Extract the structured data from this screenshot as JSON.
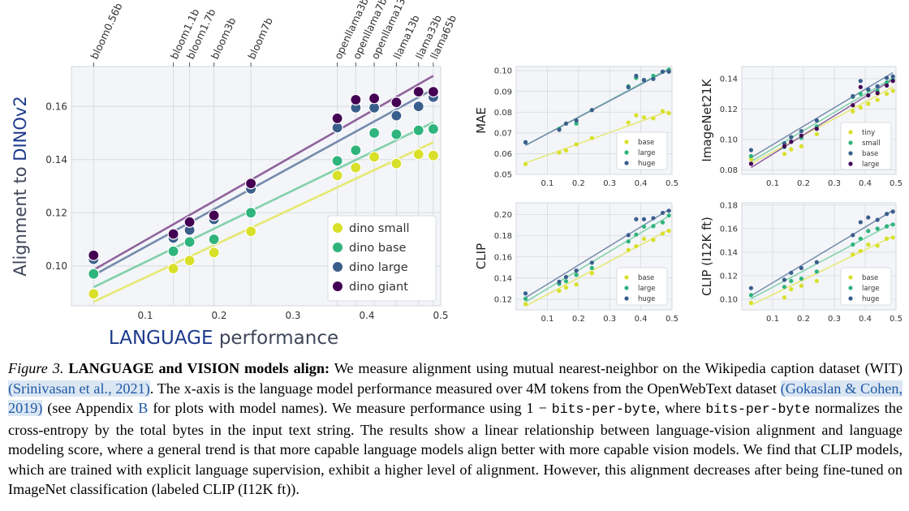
{
  "colors": {
    "yellow": "#d9e029",
    "teal": "#2fb47c",
    "blue": "#3a5e8c",
    "purple": "#440154",
    "fit_yellow": "#e6e86a",
    "fit_teal": "#7ccfa6",
    "fit_blue": "#6f86a8",
    "fit_purple": "#8a5b98",
    "panel_bg": "#f3f5f8",
    "grid": "#d7dbe0",
    "caption_link": "#1f5aa6"
  },
  "chart_data": [
    {
      "id": "main",
      "type": "scatter",
      "title": "",
      "ylabel_prefix": "Alignment to",
      "ylabel_emph": "DINOv2",
      "xlabel_emph": "LANGUAGE",
      "xlabel_rest": "performance",
      "xlim": [
        0.0,
        0.5
      ],
      "ylim": [
        0.085,
        0.175
      ],
      "xticks": [
        0.1,
        0.2,
        0.3,
        0.4,
        0.5
      ],
      "xtick_labels": [
        "0.1",
        "0.2",
        "0.3",
        "0.4",
        "0.5"
      ],
      "yticks": [
        0.1,
        0.12,
        0.14,
        0.16
      ],
      "ytick_labels": [
        "0.10",
        "0.12",
        "0.14",
        "0.16"
      ],
      "top_axis_ticks": [
        0.03,
        0.138,
        0.16,
        0.193,
        0.243,
        0.36,
        0.385,
        0.41,
        0.44,
        0.47,
        0.49
      ],
      "top_axis_labels": [
        "bloom0.56b",
        "bloom1.1b",
        "bloom1.7b",
        "bloom3b",
        "bloom7b",
        "openllama3b",
        "openllama7b",
        "openllama13b",
        "llama13b",
        "llama33b",
        "llama65b"
      ],
      "x": [
        0.03,
        0.138,
        0.16,
        0.193,
        0.243,
        0.36,
        0.385,
        0.41,
        0.44,
        0.47,
        0.49
      ],
      "series": [
        {
          "name": "dino small",
          "color": "yellow",
          "values": [
            0.0895,
            0.099,
            0.102,
            0.105,
            0.113,
            0.134,
            0.137,
            0.141,
            0.1385,
            0.142,
            0.1415
          ],
          "fit": [
            0.0865,
            0.1465
          ]
        },
        {
          "name": "dino base",
          "color": "teal",
          "values": [
            0.097,
            0.1055,
            0.109,
            0.11,
            0.12,
            0.1395,
            0.1435,
            0.15,
            0.1495,
            0.151,
            0.1515
          ],
          "fit": [
            0.092,
            0.154
          ]
        },
        {
          "name": "dino large",
          "color": "blue",
          "values": [
            0.1025,
            0.1105,
            0.1135,
            0.1175,
            0.129,
            0.152,
            0.1595,
            0.1595,
            0.1565,
            0.16,
            0.1635
          ],
          "fit": [
            0.0965,
            0.1665
          ]
        },
        {
          "name": "dino giant",
          "color": "purple",
          "values": [
            0.104,
            0.112,
            0.1165,
            0.119,
            0.131,
            0.1555,
            0.1625,
            0.163,
            0.1615,
            0.1655,
            0.1655
          ],
          "fit": [
            0.0985,
            0.1715
          ]
        }
      ],
      "legend_position": "lower-right"
    },
    {
      "id": "mae",
      "type": "scatter",
      "ylabel": "MAE",
      "xlim": [
        0.0,
        0.5
      ],
      "ylim": [
        0.05,
        0.102
      ],
      "xticks": [
        0.1,
        0.2,
        0.3,
        0.4,
        0.5
      ],
      "xtick_labels": [
        "0.1",
        "0.2",
        "0.3",
        "0.4",
        "0.5"
      ],
      "yticks": [
        0.05,
        0.06,
        0.07,
        0.08,
        0.09,
        0.1
      ],
      "ytick_labels": [
        "0.05",
        "0.06",
        "0.07",
        "0.08",
        "0.09",
        "0.10"
      ],
      "x": [
        0.03,
        0.138,
        0.16,
        0.193,
        0.243,
        0.36,
        0.385,
        0.41,
        0.44,
        0.47,
        0.49
      ],
      "series": [
        {
          "name": "base",
          "color": "yellow",
          "values": [
            0.055,
            0.0605,
            0.0615,
            0.0645,
            0.0675,
            0.075,
            0.0785,
            0.0775,
            0.077,
            0.0805,
            0.0795
          ],
          "fit": [
            0.0555,
            0.0805
          ]
        },
        {
          "name": "large",
          "color": "teal",
          "values": [
            0.0655,
            0.072,
            0.0745,
            0.0745,
            0.081,
            0.0925,
            0.0965,
            0.0955,
            0.0975,
            0.0995,
            0.1005
          ],
          "fit": [
            0.064,
            0.101
          ]
        },
        {
          "name": "huge",
          "color": "blue",
          "values": [
            0.0655,
            0.0715,
            0.0745,
            0.076,
            0.081,
            0.092,
            0.0975,
            0.0955,
            0.096,
            0.0995,
            0.0995
          ],
          "fit": [
            0.064,
            0.1005
          ]
        }
      ],
      "legend_position": "lower-right"
    },
    {
      "id": "in21k",
      "type": "scatter",
      "ylabel": "ImageNet21K",
      "xlim": [
        0.0,
        0.5
      ],
      "ylim": [
        0.077,
        0.148
      ],
      "xticks": [
        0.1,
        0.2,
        0.3,
        0.4,
        0.5
      ],
      "xtick_labels": [
        "0.1",
        "0.2",
        "0.3",
        "0.4",
        "0.5"
      ],
      "yticks": [
        0.08,
        0.1,
        0.12,
        0.14
      ],
      "ytick_labels": [
        "0.08",
        "0.10",
        "0.12",
        "0.14"
      ],
      "x": [
        0.03,
        0.138,
        0.16,
        0.193,
        0.243,
        0.36,
        0.385,
        0.41,
        0.44,
        0.47,
        0.49
      ],
      "series": [
        {
          "name": "tiny",
          "color": "yellow",
          "values": [
            0.087,
            0.0905,
            0.0935,
            0.0955,
            0.1035,
            0.1185,
            0.121,
            0.1235,
            0.126,
            0.13,
            0.132
          ],
          "fit": [
            0.084,
            0.1345
          ]
        },
        {
          "name": "small",
          "color": "teal",
          "values": [
            0.089,
            0.095,
            0.0985,
            0.101,
            0.1085,
            0.128,
            0.13,
            0.1325,
            0.132,
            0.1375,
            0.1395
          ],
          "fit": [
            0.0855,
            0.1405
          ]
        },
        {
          "name": "base",
          "color": "blue",
          "values": [
            0.093,
            0.0975,
            0.1015,
            0.1055,
            0.1125,
            0.1285,
            0.1385,
            0.133,
            0.135,
            0.1405,
            0.1415
          ],
          "fit": [
            0.088,
            0.144
          ]
        },
        {
          "name": "large",
          "color": "purple",
          "values": [
            0.084,
            0.0955,
            0.0985,
            0.1025,
            0.107,
            0.1225,
            0.1345,
            0.129,
            0.1305,
            0.1355,
            0.1385
          ],
          "fit": [
            0.0815,
            0.1395
          ]
        }
      ],
      "legend_position": "lower-right"
    },
    {
      "id": "clip",
      "type": "scatter",
      "ylabel": "CLIP",
      "xlim": [
        0.0,
        0.5
      ],
      "ylim": [
        0.11,
        0.211
      ],
      "xticks": [
        0.1,
        0.2,
        0.3,
        0.4,
        0.5
      ],
      "xtick_labels": [
        "0.1",
        "0.2",
        "0.3",
        "0.4",
        "0.5"
      ],
      "yticks": [
        0.12,
        0.14,
        0.16,
        0.18,
        0.2
      ],
      "ytick_labels": [
        "0.12",
        "0.14",
        "0.16",
        "0.18",
        "0.20"
      ],
      "x": [
        0.03,
        0.138,
        0.16,
        0.193,
        0.243,
        0.36,
        0.385,
        0.41,
        0.44,
        0.47,
        0.49
      ],
      "series": [
        {
          "name": "base",
          "color": "yellow",
          "values": [
            0.1155,
            0.128,
            0.131,
            0.134,
            0.1445,
            0.1665,
            0.17,
            0.177,
            0.176,
            0.182,
            0.1845
          ],
          "fit": [
            0.1135,
            0.1855
          ]
        },
        {
          "name": "large",
          "color": "teal",
          "values": [
            0.1205,
            0.1345,
            0.137,
            0.143,
            0.1495,
            0.1745,
            0.181,
            0.1885,
            0.189,
            0.1925,
            0.199
          ],
          "fit": [
            0.1175,
            0.1985
          ]
        },
        {
          "name": "huge",
          "color": "blue",
          "values": [
            0.1255,
            0.1365,
            0.141,
            0.147,
            0.1545,
            0.1805,
            0.1955,
            0.1955,
            0.1965,
            0.2015,
            0.2035
          ],
          "fit": [
            0.1215,
            0.2045
          ]
        }
      ],
      "legend_position": "lower-right"
    },
    {
      "id": "clip_ft",
      "type": "scatter",
      "ylabel": "CLIP (I12K ft)",
      "xlim": [
        0.0,
        0.5
      ],
      "ylim": [
        0.091,
        0.182
      ],
      "xticks": [
        0.1,
        0.2,
        0.3,
        0.4,
        0.5
      ],
      "xtick_labels": [
        "0.1",
        "0.2",
        "0.3",
        "0.4",
        "0.5"
      ],
      "yticks": [
        0.1,
        0.12,
        0.14,
        0.16,
        0.18
      ],
      "ytick_labels": [
        "0.10",
        "0.12",
        "0.14",
        "0.16",
        "0.18"
      ],
      "x": [
        0.03,
        0.138,
        0.16,
        0.193,
        0.243,
        0.36,
        0.385,
        0.41,
        0.44,
        0.47,
        0.49
      ],
      "series": [
        {
          "name": "base",
          "color": "yellow",
          "values": [
            0.097,
            0.1015,
            0.1085,
            0.1115,
            0.1155,
            0.138,
            0.141,
            0.1465,
            0.1455,
            0.1515,
            0.1525
          ],
          "fit": [
            0.095,
            0.1535
          ]
        },
        {
          "name": "large",
          "color": "teal",
          "values": [
            0.1035,
            0.1105,
            0.1155,
            0.1175,
            0.1235,
            0.1465,
            0.1515,
            0.158,
            0.16,
            0.162,
            0.1635
          ],
          "fit": [
            0.1005,
            0.1645
          ]
        },
        {
          "name": "huge",
          "color": "blue",
          "values": [
            0.1095,
            0.1165,
            0.1225,
            0.1265,
            0.1315,
            0.1545,
            0.1655,
            0.1695,
            0.1675,
            0.1725,
            0.1745
          ],
          "fit": [
            0.103,
            0.1755
          ]
        }
      ],
      "legend_position": "lower-right"
    }
  ],
  "caption": {
    "label": "Figure 3.",
    "title": "LANGUAGE and VISION models align:",
    "t1": "We measure alignment using mutual nearest-neighbor on the Wikipedia caption dataset (WIT)",
    "cite1": "(Srinivasan et al., 2021)",
    "t2": ". The x-axis is the language model performance measured over 4M tokens from the OpenWebText dataset",
    "cite2": "(Gokaslan & Cohen, 2019)",
    "t3": "(see Appendix",
    "appendix": "B",
    "t4": "for plots with model names). We measure performance using 1 −",
    "code1": "bits-per-byte",
    "t5": ", where",
    "code2": "bits-per-byte",
    "t6": "normalizes the cross-entropy by the total bytes in the input text string. The results show a linear relationship between language-vision alignment and language modeling score, where a general trend is that more capable language models align better with more capable vision models. We find that CLIP models, which are trained with explicit language supervision, exhibit a higher level of alignment. However, this alignment decreases after being fine-tuned on ImageNet classification (labeled CLIP (I12K ft))."
  }
}
